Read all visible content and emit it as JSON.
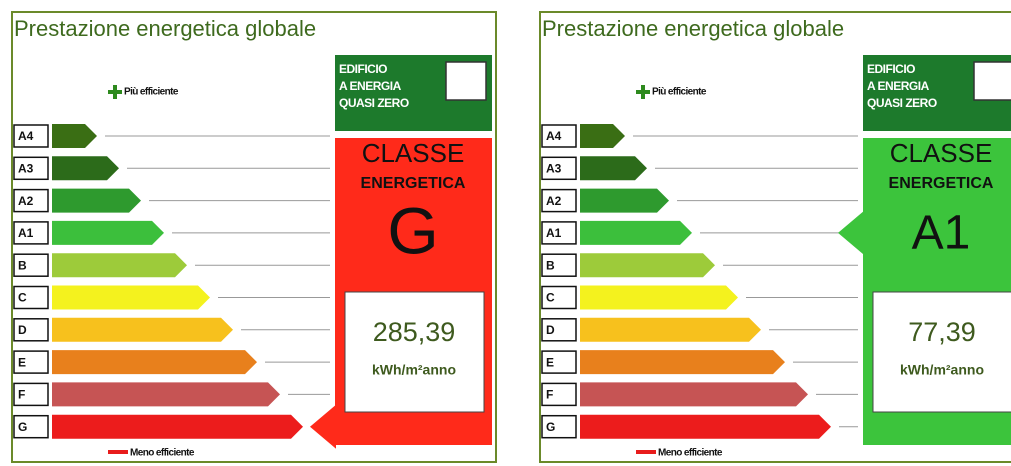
{
  "panels": [
    {
      "title": "Prestazione energetica globale",
      "nzeb": [
        "EDIFICIO",
        "A ENERGIA",
        "QUASI ZERO"
      ],
      "top_label": "Più efficiente",
      "bottom_label": "Meno efficiente",
      "classes": [
        "A4",
        "A3",
        "A2",
        "A1",
        "B",
        "C",
        "D",
        "E",
        "F",
        "G"
      ],
      "class_colors": [
        "#3a6e14",
        "#2c6b1a",
        "#2e9a2e",
        "#3cbf3c",
        "#9dcb3a",
        "#f4f21e",
        "#f7c11d",
        "#e8801c",
        "#c65454",
        "#ec1c1c"
      ],
      "class_heading": [
        "CLASSE",
        "ENERGETICA"
      ],
      "class": "G",
      "color": "#ff2a1a",
      "value": "285,39",
      "unit": "kWh/m²anno"
    },
    {
      "title": "Prestazione energetica globale",
      "nzeb": [
        "EDIFICIO",
        "A ENERGIA",
        "QUASI ZERO"
      ],
      "top_label": "Più efficiente",
      "bottom_label": "Meno efficiente",
      "classes": [
        "A4",
        "A3",
        "A2",
        "A1",
        "B",
        "C",
        "D",
        "E",
        "F",
        "G"
      ],
      "class_colors": [
        "#3a6e14",
        "#2c6b1a",
        "#2e9a2e",
        "#3cbf3c",
        "#9dcb3a",
        "#f4f21e",
        "#f7c11d",
        "#e8801c",
        "#c65454",
        "#ec1c1c"
      ],
      "class_heading": [
        "CLASSE",
        "ENERGETICA"
      ],
      "class": "A1",
      "color": "#3cc43c",
      "value": "77,39",
      "unit": "kWh/m²anno"
    }
  ]
}
